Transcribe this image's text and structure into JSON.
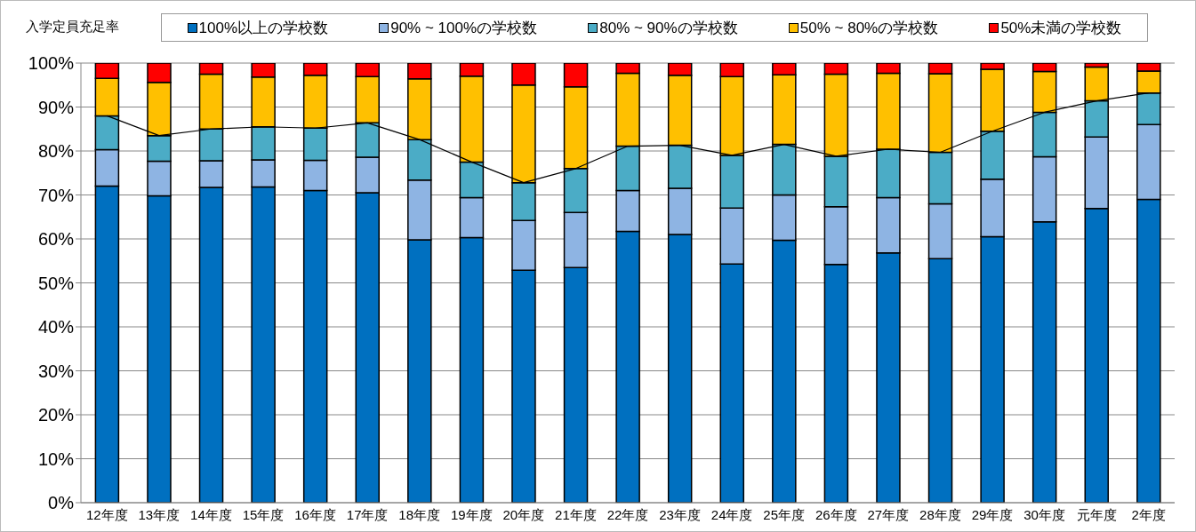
{
  "chart_data": {
    "type": "bar",
    "stacked": true,
    "ylabel": "入学定員充足率",
    "categories": [
      "12年度",
      "13年度",
      "14年度",
      "15年度",
      "16年度",
      "17年度",
      "18年度",
      "19年度",
      "20年度",
      "21年度",
      "22年度",
      "23年度",
      "24年度",
      "25年度",
      "26年度",
      "27年度",
      "28年度",
      "29年度",
      "30年度",
      "元年度",
      "2年度"
    ],
    "series": [
      {
        "name": "100%以上の学校数",
        "color": "#0070c0",
        "values": [
          72,
          69.8,
          71.7,
          71.8,
          71,
          70.5,
          59.8,
          60.3,
          52.9,
          53.5,
          61.7,
          61,
          54.3,
          59.7,
          54.2,
          56.8,
          55.5,
          60.5,
          63.9,
          66.9,
          69
        ]
      },
      {
        "name": "90% ~ 100%の学校数",
        "color": "#8eb4e3",
        "values": [
          8.3,
          7.9,
          6.1,
          6.2,
          6.9,
          8.1,
          13.6,
          9.1,
          11.3,
          12.5,
          9.3,
          10.5,
          12.7,
          10.3,
          13.1,
          12.6,
          12.5,
          13.1,
          14.8,
          16.3,
          17
        ]
      },
      {
        "name": "80% ~ 90%の学校数",
        "color": "#4bacc6",
        "values": [
          7.7,
          5.8,
          7.2,
          7.5,
          7.3,
          7.8,
          9.2,
          8.1,
          8.6,
          10,
          10.1,
          9.8,
          12,
          11.5,
          11.5,
          11,
          11.7,
          10.9,
          10.1,
          8.2,
          7.2
        ]
      },
      {
        "name": "50% ~ 80%の学校数",
        "color": "#ffc000",
        "values": [
          8.5,
          12.1,
          12.5,
          11.3,
          12,
          10.5,
          13.8,
          19.5,
          22.2,
          18.6,
          16.6,
          15.9,
          17.9,
          15.8,
          18.7,
          17.3,
          17.9,
          14.1,
          9.3,
          7.7,
          5
        ]
      },
      {
        "name": "50%未満の学校数",
        "color": "#ff0000",
        "values": [
          3.5,
          4.4,
          2.5,
          3.2,
          2.8,
          3.1,
          3.6,
          3,
          5,
          5.4,
          2.3,
          2.8,
          3.1,
          2.7,
          2.5,
          2.3,
          2.4,
          1.4,
          1.9,
          0.9,
          1.8
        ]
      },
      {
        "type": "line",
        "color": "#000000",
        "values": [
          88,
          83.5,
          85,
          85.5,
          85.2,
          86.4,
          82.6,
          77.5,
          72.8,
          76,
          81.1,
          81.3,
          79,
          81.5,
          78.8,
          80.4,
          79.7,
          84.5,
          88.8,
          91.4,
          93.2
        ]
      }
    ],
    "ylim": [
      0,
      100
    ],
    "yticks": [
      {
        "value": 0,
        "label": "0%"
      },
      {
        "value": 10,
        "label": "10%"
      },
      {
        "value": 20,
        "label": "20%"
      },
      {
        "value": 30,
        "label": "30%"
      },
      {
        "value": 40,
        "label": "40%"
      },
      {
        "value": 50,
        "label": "50%"
      },
      {
        "value": 60,
        "label": "60%"
      },
      {
        "value": 70,
        "label": "70%"
      },
      {
        "value": 80,
        "label": "80%"
      },
      {
        "value": 90,
        "label": "90%"
      },
      {
        "value": 100,
        "label": "100%"
      }
    ],
    "grid": "y",
    "legend": "top",
    "marker": "none"
  }
}
